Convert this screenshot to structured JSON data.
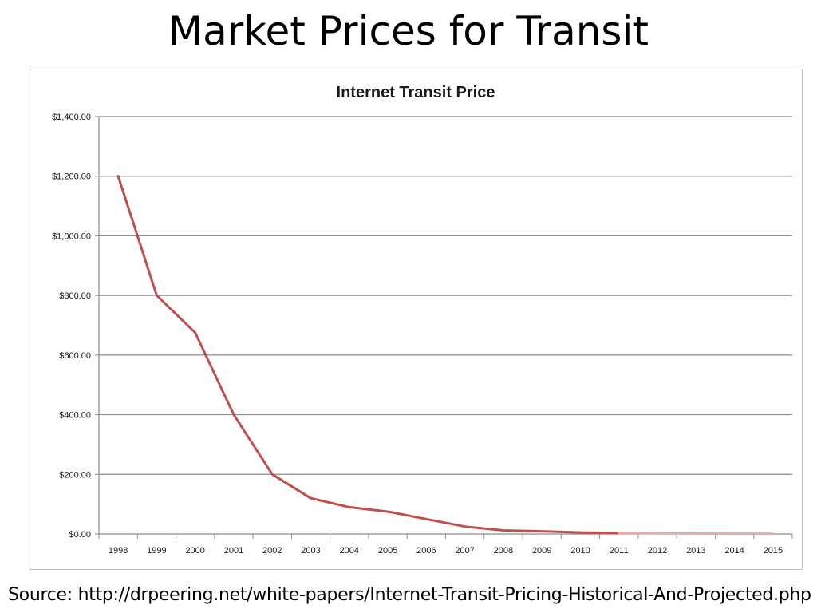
{
  "slide": {
    "title": "Market Prices for Transit",
    "source": "Source: http://drpeering.net/white-papers/Internet-Transit-Pricing-Historical-And-Projected.php"
  },
  "chart_data": {
    "type": "line",
    "title": "Internet Transit Price",
    "xlabel": "",
    "ylabel": "",
    "ylim": [
      0,
      1400
    ],
    "ytick_values": [
      0,
      200,
      400,
      600,
      800,
      1000,
      1200,
      1400
    ],
    "ytick_labels": [
      "$0.00",
      "$200.00",
      "$400.00",
      "$600.00",
      "$800.00",
      "$1,000.00",
      "$1,200.00",
      "$1,400.00"
    ],
    "categories": [
      "1998",
      "1999",
      "2000",
      "2001",
      "2002",
      "2003",
      "2004",
      "2005",
      "2006",
      "2007",
      "2008",
      "2009",
      "2010",
      "2011",
      "2012",
      "2013",
      "2014",
      "2015"
    ],
    "grid": true,
    "legend": "none",
    "series": [
      {
        "style": "solid",
        "color": "#c0504d",
        "x": [
          "1998",
          "1999",
          "2000",
          "2001",
          "2002",
          "2003",
          "2004",
          "2005",
          "2006",
          "2007",
          "2008",
          "2009",
          "2010",
          "2011"
        ],
        "values": [
          1200,
          800,
          675,
          400,
          200,
          120,
          90,
          75,
          50,
          25,
          12,
          9,
          5,
          3.25
        ]
      },
      {
        "style": "dashed",
        "color": "#e8a9a7",
        "x": [
          "2011",
          "2012",
          "2013",
          "2014",
          "2015"
        ],
        "values": [
          3.25,
          2.34,
          1.57,
          1.13,
          0.94
        ]
      }
    ]
  }
}
